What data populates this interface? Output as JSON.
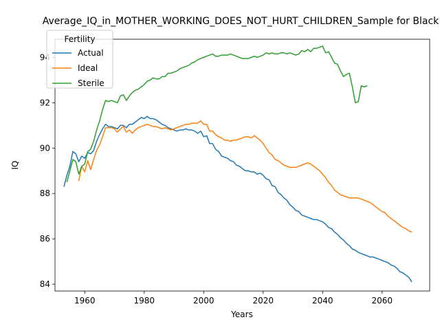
{
  "chart_data": {
    "type": "line",
    "title": "Average_IQ_in_MOTHER_WORKING_DOES_NOT_HURT_CHILDREN_Sample for Black",
    "xlabel": "Years",
    "ylabel": "IQ",
    "xlim": [
      1950,
      2076
    ],
    "ylim": [
      83.7,
      94.8
    ],
    "xticks": [
      1960,
      1980,
      2000,
      2020,
      2040,
      2060
    ],
    "yticks": [
      84,
      86,
      88,
      90,
      92,
      94
    ],
    "grid": false,
    "legend": {
      "title": "Fertility",
      "position": "top-left"
    },
    "series": [
      {
        "name": "Actual",
        "color": "#1f77b4",
        "x": [
          1953,
          1954,
          1955,
          1956,
          1957,
          1958,
          1959,
          1960,
          1961,
          1962,
          1963,
          1964,
          1965,
          1966,
          1967,
          1968,
          1969,
          1970,
          1971,
          1972,
          1973,
          1974,
          1975,
          1976,
          1977,
          1978,
          1979,
          1980,
          1981,
          1982,
          1983,
          1984,
          1985,
          1986,
          1987,
          1988,
          1989,
          1990,
          1991,
          1992,
          1993,
          1994,
          1995,
          1996,
          1997,
          1998,
          1999,
          2000,
          2001,
          2002,
          2003,
          2004,
          2005,
          2006,
          2007,
          2008,
          2009,
          2010,
          2011,
          2012,
          2013,
          2014,
          2015,
          2016,
          2017,
          2018,
          2019,
          2020,
          2021,
          2022,
          2023,
          2024,
          2025,
          2026,
          2027,
          2028,
          2029,
          2030,
          2031,
          2032,
          2033,
          2034,
          2035,
          2036,
          2037,
          2038,
          2039,
          2040,
          2041,
          2042,
          2043,
          2044,
          2045,
          2046,
          2047,
          2048,
          2049,
          2050,
          2051,
          2052,
          2053,
          2054,
          2055,
          2056,
          2057,
          2058,
          2059,
          2060,
          2061,
          2062,
          2063,
          2064,
          2065,
          2066,
          2067,
          2068,
          2069,
          2070
        ],
        "y": [
          88.3,
          88.8,
          89.2,
          89.85,
          89.75,
          89.4,
          89.65,
          89.55,
          89.8,
          89.75,
          89.9,
          90.3,
          90.6,
          90.85,
          91.05,
          90.95,
          90.95,
          90.9,
          90.85,
          91.0,
          91.0,
          90.9,
          91.05,
          91.05,
          91.15,
          91.25,
          91.35,
          91.3,
          91.4,
          91.3,
          91.3,
          91.25,
          91.15,
          91.05,
          91.0,
          90.9,
          90.85,
          90.8,
          90.75,
          90.8,
          90.8,
          90.85,
          90.8,
          90.8,
          90.75,
          90.65,
          90.75,
          90.5,
          90.55,
          90.2,
          90.2,
          89.95,
          89.85,
          89.65,
          89.6,
          89.55,
          89.45,
          89.4,
          89.25,
          89.2,
          89.1,
          89.0,
          89.0,
          88.95,
          88.95,
          88.85,
          88.9,
          88.8,
          88.65,
          88.6,
          88.35,
          88.3,
          88.05,
          87.95,
          87.8,
          87.7,
          87.5,
          87.4,
          87.25,
          87.2,
          87.05,
          87.0,
          86.95,
          86.9,
          86.85,
          86.85,
          86.8,
          86.75,
          86.65,
          86.5,
          86.45,
          86.3,
          86.2,
          86.05,
          85.95,
          85.8,
          85.7,
          85.55,
          85.5,
          85.4,
          85.35,
          85.3,
          85.25,
          85.2,
          85.2,
          85.15,
          85.1,
          85.05,
          85.0,
          84.95,
          84.85,
          84.8,
          84.7,
          84.55,
          84.5,
          84.4,
          84.3,
          84.1
        ]
      },
      {
        "name": "Ideal",
        "color": "#ff7f0e",
        "x": [
          1958,
          1959,
          1960,
          1961,
          1962,
          1963,
          1964,
          1965,
          1966,
          1967,
          1968,
          1969,
          1970,
          1971,
          1972,
          1973,
          1974,
          1975,
          1976,
          1977,
          1978,
          1979,
          1980,
          1981,
          1982,
          1983,
          1984,
          1985,
          1986,
          1987,
          1988,
          1989,
          1990,
          1991,
          1992,
          1993,
          1994,
          1995,
          1996,
          1997,
          1998,
          1999,
          2000,
          2001,
          2002,
          2003,
          2004,
          2005,
          2006,
          2007,
          2008,
          2009,
          2010,
          2011,
          2012,
          2013,
          2014,
          2015,
          2016,
          2017,
          2018,
          2019,
          2020,
          2021,
          2022,
          2023,
          2024,
          2025,
          2026,
          2027,
          2028,
          2029,
          2030,
          2031,
          2032,
          2033,
          2034,
          2035,
          2036,
          2037,
          2038,
          2039,
          2040,
          2041,
          2042,
          2043,
          2044,
          2045,
          2046,
          2047,
          2048,
          2049,
          2050,
          2051,
          2052,
          2053,
          2054,
          2055,
          2056,
          2057,
          2058,
          2059,
          2060,
          2061,
          2062,
          2063,
          2064,
          2065,
          2066,
          2067,
          2068,
          2069,
          2070
        ],
        "y": [
          88.55,
          89.2,
          88.95,
          89.45,
          89.05,
          89.5,
          89.9,
          90.15,
          90.5,
          90.9,
          90.9,
          90.9,
          90.85,
          90.7,
          90.85,
          90.95,
          90.7,
          90.8,
          90.65,
          90.8,
          90.9,
          90.95,
          91.0,
          91.05,
          91.0,
          90.95,
          90.95,
          90.9,
          90.85,
          90.9,
          90.85,
          90.8,
          90.85,
          90.9,
          90.95,
          91.0,
          91.05,
          91.05,
          91.1,
          91.1,
          91.1,
          91.2,
          91.05,
          91.05,
          90.75,
          90.75,
          90.6,
          90.5,
          90.45,
          90.35,
          90.35,
          90.3,
          90.35,
          90.35,
          90.4,
          90.45,
          90.5,
          90.5,
          90.45,
          90.55,
          90.45,
          90.35,
          90.2,
          90.0,
          89.8,
          89.7,
          89.5,
          89.45,
          89.35,
          89.25,
          89.2,
          89.15,
          89.15,
          89.15,
          89.2,
          89.25,
          89.3,
          89.35,
          89.3,
          89.2,
          89.1,
          89.0,
          88.85,
          88.7,
          88.5,
          88.35,
          88.15,
          88.05,
          87.95,
          87.9,
          87.85,
          87.8,
          87.8,
          87.8,
          87.8,
          87.75,
          87.7,
          87.65,
          87.6,
          87.5,
          87.4,
          87.3,
          87.2,
          87.15,
          87.0,
          86.9,
          86.8,
          86.7,
          86.6,
          86.5,
          86.45,
          86.35,
          86.3
        ]
      },
      {
        "name": "Sterile",
        "color": "#2ca02c",
        "x": [
          1954,
          1955,
          1956,
          1957,
          1958,
          1959,
          1960,
          1961,
          1962,
          1963,
          1964,
          1965,
          1966,
          1967,
          1968,
          1969,
          1970,
          1971,
          1972,
          1973,
          1974,
          1975,
          1976,
          1977,
          1978,
          1979,
          1980,
          1981,
          1982,
          1983,
          1984,
          1985,
          1986,
          1987,
          1988,
          1989,
          1990,
          1991,
          1992,
          1993,
          1994,
          1995,
          1996,
          1997,
          1998,
          1999,
          2000,
          2001,
          2002,
          2003,
          2004,
          2005,
          2006,
          2007,
          2008,
          2009,
          2010,
          2011,
          2012,
          2013,
          2014,
          2015,
          2016,
          2017,
          2018,
          2019,
          2020,
          2021,
          2022,
          2023,
          2024,
          2025,
          2026,
          2027,
          2028,
          2029,
          2030,
          2031,
          2032,
          2033,
          2034,
          2035,
          2036,
          2037,
          2038,
          2039,
          2040,
          2041,
          2042,
          2043,
          2044,
          2045,
          2046,
          2047,
          2048,
          2049,
          2050,
          2051,
          2052,
          2053,
          2054,
          2055
        ],
        "y": [
          88.5,
          89.0,
          89.5,
          89.4,
          88.85,
          89.2,
          89.3,
          89.85,
          89.95,
          90.3,
          90.8,
          91.2,
          91.7,
          92.1,
          92.05,
          92.1,
          92.05,
          92.0,
          92.3,
          92.35,
          92.1,
          92.3,
          92.45,
          92.55,
          92.6,
          92.7,
          92.8,
          92.95,
          93.0,
          93.1,
          93.05,
          93.05,
          93.15,
          93.15,
          93.3,
          93.3,
          93.35,
          93.4,
          93.5,
          93.55,
          93.6,
          93.65,
          93.75,
          93.8,
          93.9,
          93.95,
          94.0,
          94.05,
          94.1,
          94.15,
          94.05,
          94.05,
          94.1,
          94.1,
          94.1,
          94.15,
          94.1,
          94.05,
          94.0,
          93.95,
          93.95,
          93.95,
          94.0,
          94.05,
          94.0,
          94.05,
          94.1,
          94.2,
          94.15,
          94.2,
          94.15,
          94.15,
          94.2,
          94.2,
          94.15,
          94.2,
          94.15,
          94.1,
          94.15,
          94.3,
          94.25,
          94.35,
          94.25,
          94.4,
          94.4,
          94.45,
          94.5,
          94.2,
          94.25,
          94.0,
          93.75,
          93.7,
          93.4,
          93.15,
          93.25,
          93.3,
          92.7,
          92.0,
          92.05,
          92.75,
          92.7,
          92.75
        ]
      }
    ]
  }
}
